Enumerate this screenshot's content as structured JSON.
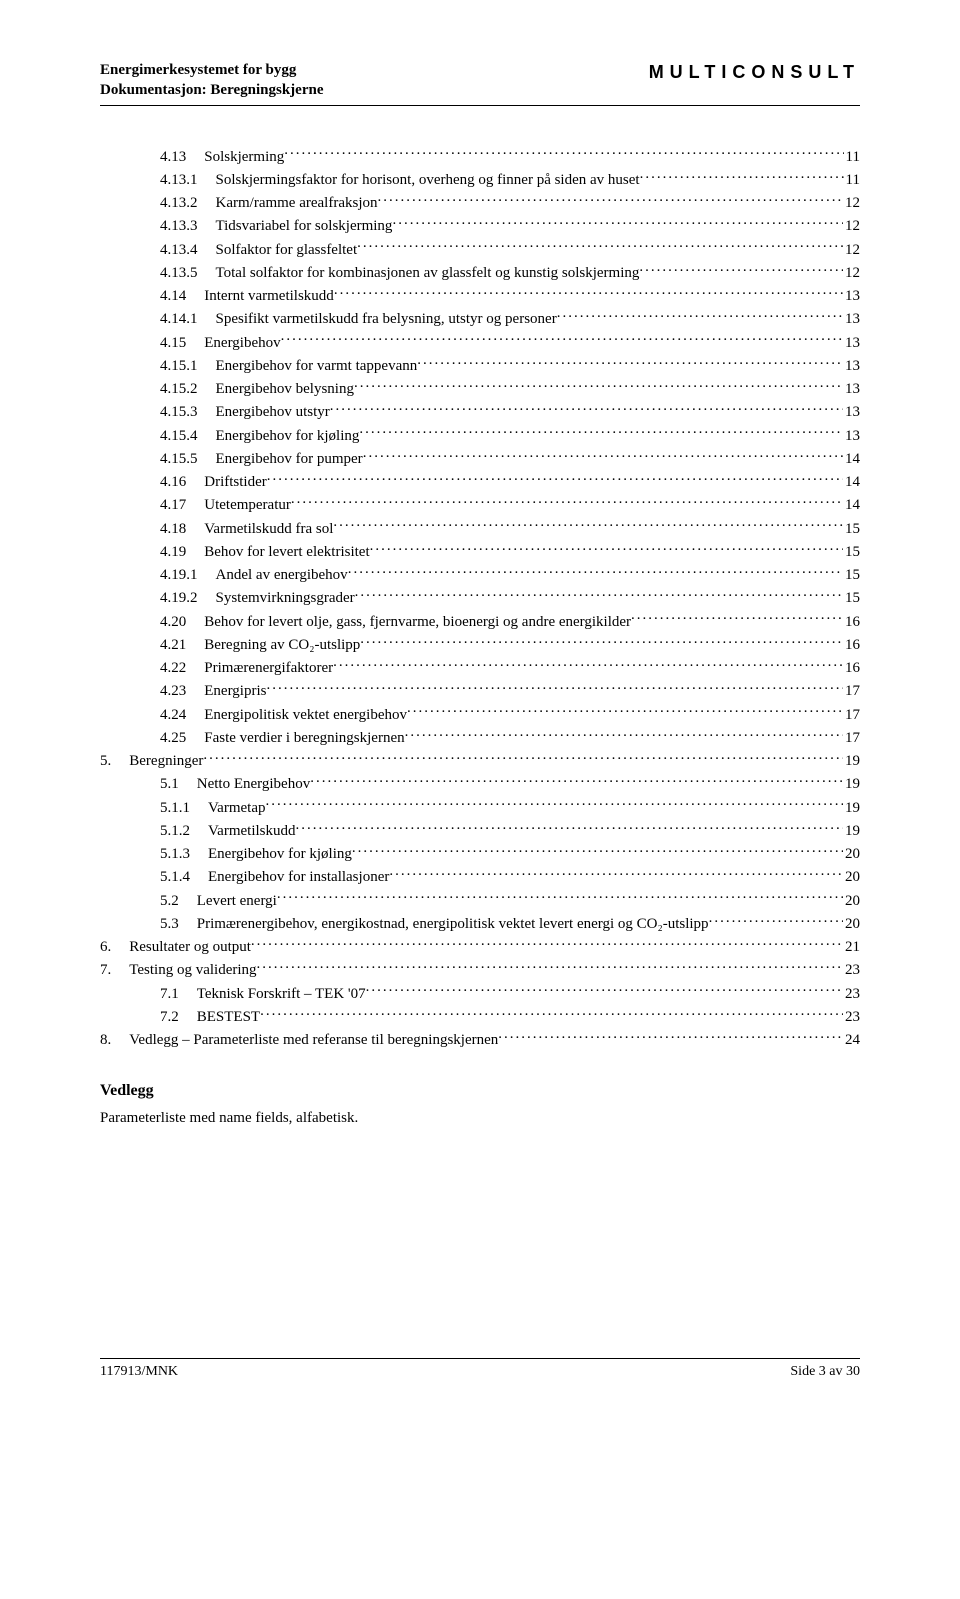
{
  "header": {
    "title_line1": "Energimerkesystemet for bygg",
    "title_line2": "Dokumentasjon: Beregningskjerne",
    "brand": "MULTICONSULT"
  },
  "toc": [
    {
      "num": "4.13",
      "title": "Solskjerming",
      "page": "11",
      "indent": 1
    },
    {
      "num": "4.13.1",
      "title": "Solskjermingsfaktor for horisont, overheng og finner på siden av huset",
      "page": "11",
      "indent": 1
    },
    {
      "num": "4.13.2",
      "title": "Karm/ramme arealfraksjon",
      "page": "12",
      "indent": 1
    },
    {
      "num": "4.13.3",
      "title": "Tidsvariabel for solskjerming",
      "page": "12",
      "indent": 1
    },
    {
      "num": "4.13.4",
      "title": "Solfaktor for glassfeltet",
      "page": "12",
      "indent": 1
    },
    {
      "num": "4.13.5",
      "title": "Total solfaktor for kombinasjonen av glassfelt og kunstig solskjerming",
      "page": "12",
      "indent": 1
    },
    {
      "num": "4.14",
      "title": "Internt varmetilskudd",
      "page": "13",
      "indent": 1
    },
    {
      "num": "4.14.1",
      "title": "Spesifikt varmetilskudd fra belysning, utstyr og personer",
      "page": "13",
      "indent": 1
    },
    {
      "num": "4.15",
      "title": "Energibehov",
      "page": "13",
      "indent": 1
    },
    {
      "num": "4.15.1",
      "title": "Energibehov for varmt tappevann",
      "page": "13",
      "indent": 1
    },
    {
      "num": "4.15.2",
      "title": "Energibehov belysning",
      "page": "13",
      "indent": 1
    },
    {
      "num": "4.15.3",
      "title": "Energibehov utstyr",
      "page": "13",
      "indent": 1
    },
    {
      "num": "4.15.4",
      "title": "Energibehov for kjøling",
      "page": "13",
      "indent": 1
    },
    {
      "num": "4.15.5",
      "title": "Energibehov for pumper",
      "page": "14",
      "indent": 1
    },
    {
      "num": "4.16",
      "title": "Driftstider",
      "page": "14",
      "indent": 1
    },
    {
      "num": "4.17",
      "title": "Utetemperatur",
      "page": "14",
      "indent": 1
    },
    {
      "num": "4.18",
      "title": "Varmetilskudd fra sol",
      "page": "15",
      "indent": 1
    },
    {
      "num": "4.19",
      "title": "Behov for levert elektrisitet",
      "page": "15",
      "indent": 1
    },
    {
      "num": "4.19.1",
      "title": "Andel av energibehov",
      "page": "15",
      "indent": 1
    },
    {
      "num": "4.19.2",
      "title": "Systemvirkningsgrader",
      "page": "15",
      "indent": 1
    },
    {
      "num": "4.20",
      "title": "Behov for levert olje, gass, fjernvarme, bioenergi og andre energikilder",
      "page": "16",
      "indent": 1
    },
    {
      "num": "4.21",
      "title": "Beregning av CO₂-utslipp",
      "page": "16",
      "indent": 1
    },
    {
      "num": "4.22",
      "title": "Primærenergifaktorer",
      "page": "16",
      "indent": 1
    },
    {
      "num": "4.23",
      "title": "Energipris",
      "page": "17",
      "indent": 1
    },
    {
      "num": "4.24",
      "title": "Energipolitisk vektet energibehov",
      "page": "17",
      "indent": 1
    },
    {
      "num": "4.25",
      "title": "Faste verdier i beregningskjernen",
      "page": "17",
      "indent": 1
    },
    {
      "num": "5.",
      "title": "Beregninger",
      "page": "19",
      "indent": 0
    },
    {
      "num": "5.1",
      "title": "Netto Energibehov",
      "page": "19",
      "indent": 1
    },
    {
      "num": "5.1.1",
      "title": "Varmetap",
      "page": "19",
      "indent": 1
    },
    {
      "num": "5.1.2",
      "title": "Varmetilskudd",
      "page": "19",
      "indent": 1
    },
    {
      "num": "5.1.3",
      "title": "Energibehov for kjøling",
      "page": "20",
      "indent": 1
    },
    {
      "num": "5.1.4",
      "title": "Energibehov for installasjoner",
      "page": "20",
      "indent": 1
    },
    {
      "num": "5.2",
      "title": "Levert energi",
      "page": "20",
      "indent": 1
    },
    {
      "num": "5.3",
      "title": "Primærenergibehov, energikostnad, energipolitisk vektet levert energi og CO₂-utslipp",
      "page": "20",
      "indent": 1
    },
    {
      "num": "6.",
      "title": "Resultater og output",
      "page": "21",
      "indent": 0
    },
    {
      "num": "7.",
      "title": "Testing og validering",
      "page": "23",
      "indent": 0
    },
    {
      "num": "7.1",
      "title": "Teknisk Forskrift – TEK '07",
      "page": "23",
      "indent": 1
    },
    {
      "num": "7.2",
      "title": "BESTEST",
      "page": "23",
      "indent": 1
    },
    {
      "num": "8.",
      "title": "Vedlegg – Parameterliste med referanse til beregningskjernen",
      "page": "24",
      "indent": 0
    }
  ],
  "appendix": {
    "heading": "Vedlegg",
    "text": "Parameterliste med name fields, alfabetisk."
  },
  "footer": {
    "left": "117913/MNK",
    "right": "Side 3 av 30"
  }
}
